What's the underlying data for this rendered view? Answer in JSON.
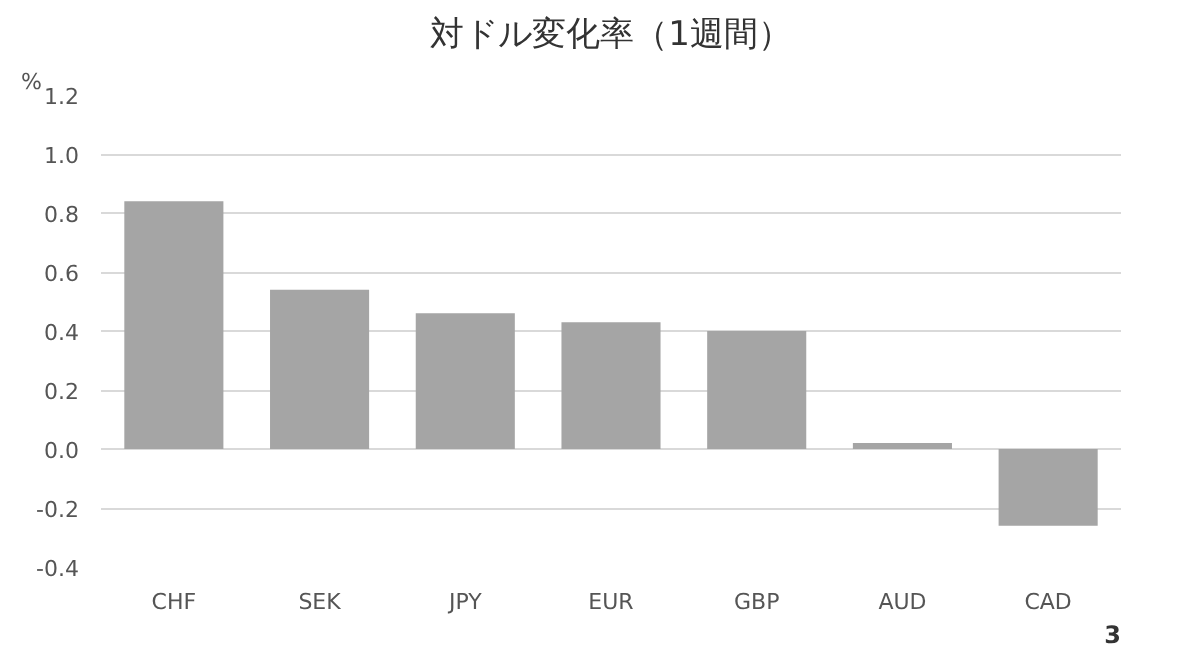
{
  "chart_data": {
    "type": "bar",
    "title": "対ドル変化率（1週間）",
    "ylabel": "%",
    "categories": [
      "CHF",
      "SEK",
      "JPY",
      "EUR",
      "GBP",
      "AUD",
      "CAD"
    ],
    "values": [
      0.84,
      0.54,
      0.46,
      0.43,
      0.4,
      0.02,
      -0.26
    ],
    "color": "#a5a5a5",
    "ylim": [
      -0.4,
      1.2
    ],
    "yticks": [
      {
        "value": -0.4,
        "label": "-0.4"
      },
      {
        "value": -0.2,
        "label": "-0.2"
      },
      {
        "value": 0,
        "label": "0.0"
      },
      {
        "value": 0.2,
        "label": "0.2"
      },
      {
        "value": 0.4,
        "label": "0.4"
      },
      {
        "value": 0.6,
        "label": "0.6"
      },
      {
        "value": 0.8,
        "label": "0.8"
      },
      {
        "value": 1.0,
        "label": "1.0"
      },
      {
        "value": 1.2,
        "label": "1.2"
      }
    ],
    "grid": "y",
    "annotations": [
      "3"
    ]
  }
}
